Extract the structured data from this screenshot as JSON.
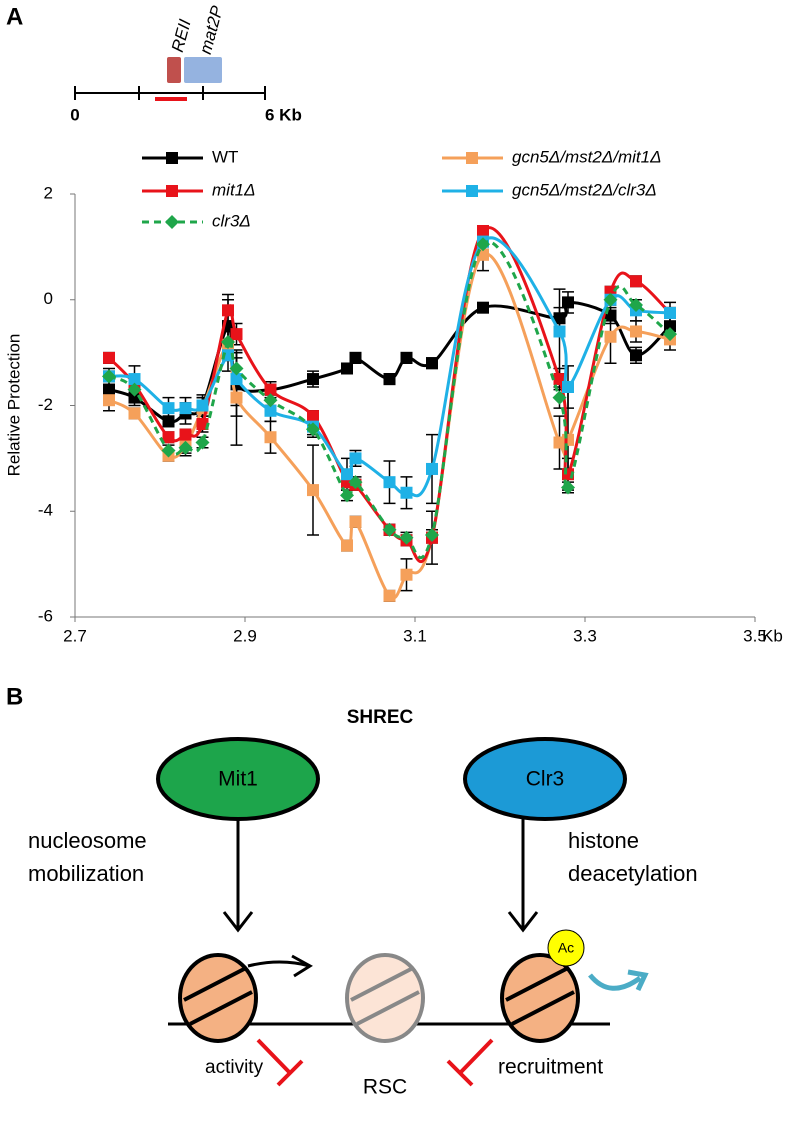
{
  "panel_a": {
    "label": "A",
    "locus": {
      "labels": [
        "REII",
        "mat2P"
      ],
      "start": "0",
      "end": "6 Kb"
    }
  },
  "chart_data": {
    "type": "line",
    "ylabel": "Relative Protection",
    "xlabel": "Kb",
    "x": [
      2.74,
      2.77,
      2.81,
      2.83,
      2.85,
      2.88,
      2.89,
      2.93,
      2.98,
      3.02,
      3.03,
      3.07,
      3.09,
      3.12,
      3.18,
      3.27,
      3.28,
      3.33,
      3.36,
      3.4
    ],
    "xlim": [
      2.7,
      3.5
    ],
    "xticks": [
      2.7,
      2.9,
      3.1,
      3.3,
      3.5
    ],
    "ylim": [
      -6,
      2
    ],
    "yticks": [
      2,
      0,
      -2,
      -4,
      -6
    ],
    "series": [
      {
        "name": "WT",
        "color": "#000000",
        "marker": "square",
        "dash": false,
        "values": [
          -1.7,
          -1.85,
          -2.3,
          -2.15,
          -2.0,
          -0.5,
          -1.6,
          -1.7,
          -1.5,
          -1.3,
          -1.1,
          -1.5,
          -1.1,
          -1.2,
          -0.15,
          -0.35,
          -0.05,
          -0.3,
          -1.05,
          -0.5
        ],
        "errors": [
          0.15,
          0.15,
          0.1,
          0.2,
          0.15,
          0.6,
          0.6,
          0.15,
          0.15,
          0.1,
          0.1,
          0.1,
          0.1,
          0.1,
          0.05,
          0.2,
          0.2,
          0.15,
          0.15,
          0.15
        ]
      },
      {
        "name": "gcn5Δ/mst2Δ/mit1Δ",
        "color": "#f5a05a",
        "marker": "square",
        "dash": false,
        "values": [
          -1.9,
          -2.15,
          -2.95,
          -2.75,
          -2.05,
          -0.85,
          -1.85,
          -2.6,
          -3.6,
          -4.65,
          -4.2,
          -5.6,
          -5.2,
          -4.5,
          0.85,
          -2.7,
          -2.65,
          -0.7,
          -0.6,
          -0.75
        ],
        "errors": [
          0.2,
          0.1,
          0.1,
          0.2,
          0.2,
          0.3,
          0.9,
          0.3,
          0.85,
          0.1,
          0.1,
          0.1,
          0.3,
          0.5,
          0.3,
          0.5,
          0.9,
          0.5,
          0.2,
          0.2
        ]
      },
      {
        "name": "mit1Δ",
        "color": "#e8131a",
        "marker": "square",
        "dash": false,
        "values": [
          -1.1,
          -1.6,
          -2.6,
          -2.55,
          -2.35,
          -0.2,
          -0.65,
          -1.7,
          -2.2,
          -3.45,
          -3.5,
          -4.35,
          -4.55,
          -4.5,
          1.3,
          -1.5,
          -3.3,
          0.15,
          0.35,
          -0.25
        ],
        "errors": [
          0.1,
          0.1,
          0.1,
          0.1,
          0.15,
          0.2,
          0.2,
          0.1,
          0.1,
          0.1,
          0.1,
          0.1,
          0.1,
          0.1,
          0.1,
          0.2,
          0.3,
          0.1,
          0.1,
          0.1
        ]
      },
      {
        "name": "gcn5Δ/mst2Δ/clr3Δ",
        "color": "#1fb1e6",
        "marker": "square",
        "dash": false,
        "values": [
          -1.45,
          -1.5,
          -2.05,
          -2.05,
          -2.0,
          -1.05,
          -1.5,
          -2.1,
          -2.4,
          -3.3,
          -3.0,
          -3.45,
          -3.65,
          -3.2,
          1.1,
          -0.6,
          -1.65,
          0.0,
          -0.2,
          -0.25
        ],
        "errors": [
          0.15,
          0.25,
          0.2,
          0.2,
          0.2,
          0.3,
          0.5,
          0.2,
          0.2,
          0.3,
          0.15,
          0.4,
          0.3,
          0.65,
          0.1,
          0.8,
          0.4,
          0.2,
          0.2,
          0.2
        ]
      },
      {
        "name": "clr3Δ",
        "color": "#1fa64a",
        "marker": "diamond",
        "dash": true,
        "values": [
          -1.45,
          -1.7,
          -2.85,
          -2.8,
          -2.7,
          -0.8,
          -1.3,
          -1.9,
          -2.45,
          -3.7,
          -3.45,
          -4.35,
          -4.5,
          -4.45,
          1.05,
          -1.85,
          -3.55,
          0.0,
          -0.1,
          -0.65
        ],
        "errors": [
          0.1,
          0.1,
          0.1,
          0.1,
          0.1,
          0.2,
          0.2,
          0.1,
          0.1,
          0.1,
          0.1,
          0.1,
          0.1,
          0.1,
          0.1,
          0.2,
          0.1,
          0.1,
          0.1,
          0.1
        ]
      }
    ]
  },
  "panel_b": {
    "label": "B",
    "title": "SHREC",
    "nodes": [
      {
        "label": "Mit1"
      },
      {
        "label": "Clr3"
      }
    ],
    "left_text": [
      "nucleosome",
      "mobilization"
    ],
    "right_text": [
      "histone",
      "deacetylation"
    ],
    "ac": "Ac",
    "activity": "activity",
    "rsc": "RSC",
    "recruitment": "recruitment"
  }
}
